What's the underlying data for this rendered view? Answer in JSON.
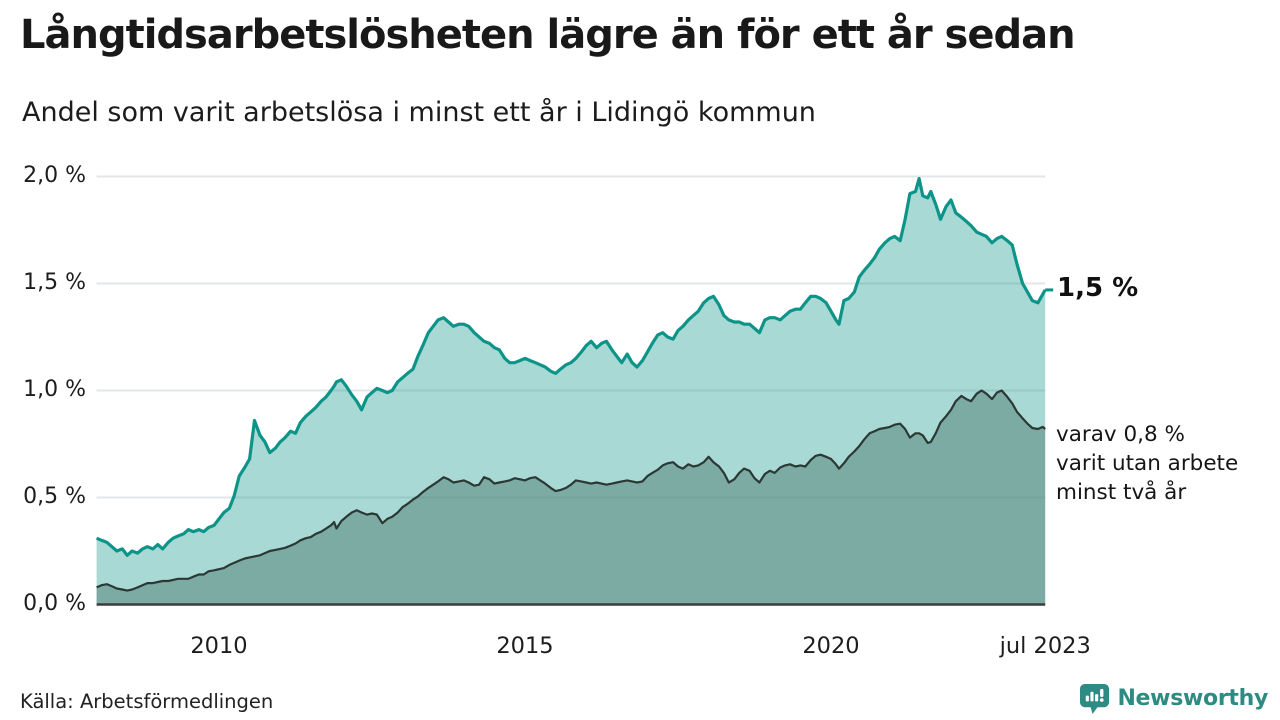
{
  "header": {
    "title": "Långtidsarbetslösheten lägre än för ett år sedan",
    "subtitle": "Andel som varit arbetslösa i minst ett år i Lidingö kommun"
  },
  "footer": {
    "source": "Källa: Arbetsförmedlingen",
    "brand_name": "Newsworthy",
    "brand_icon": "bar-chart-speech-bubble-icon"
  },
  "annotations": {
    "latest_total_label": "1,5 %",
    "two_year_note_lines": [
      "varav 0,8 %",
      "varit utan arbete",
      "minst två år"
    ]
  },
  "colors": {
    "accent_teal": "#0d9488",
    "light_fill": "#a9d6cf",
    "dark_fill": "#7baaa2",
    "dark_line": "#2b3834",
    "gridline": "#e3e6e9",
    "baseline": "#3c3c3c",
    "brand_teal": "#2e8b84"
  },
  "chart_data": {
    "type": "area",
    "title": "Långtidsarbetslösheten lägre än för ett år sedan",
    "subtitle": "Andel som varit arbetslösa i minst ett år i Lidingö kommun",
    "x_unit": "decimal_year",
    "x_range": [
      2008.0,
      2023.5
    ],
    "ylim": [
      0.0,
      2.0
    ],
    "grid": true,
    "y_ticks": [
      {
        "value": 2.0,
        "label": "2,0 %"
      },
      {
        "value": 1.5,
        "label": "1,5 %"
      },
      {
        "value": 1.0,
        "label": "1,0 %"
      },
      {
        "value": 0.5,
        "label": "0,5 %"
      },
      {
        "value": 0.0,
        "label": "0,0 %"
      }
    ],
    "x_ticks": [
      {
        "year": 2010.0,
        "label": "2010"
      },
      {
        "year": 2015.0,
        "label": "2015"
      },
      {
        "year": 2020.0,
        "label": "2020"
      },
      {
        "year": 2023.5,
        "label": "jul 2023"
      }
    ],
    "series_meta": [
      {
        "name": "Andel arbetslösa minst ett år",
        "line_color": "#0d9488",
        "fill_color": "rgba(17,150,139,0.36)",
        "line_width": 3.2,
        "latest_value_pct": 1.5
      },
      {
        "name": "varav utan arbete minst två år",
        "line_color": "#2b3834",
        "fill_color": "rgba(91,137,127,0.58)",
        "line_width": 2.2,
        "latest_value_pct": 0.8
      }
    ],
    "points_format": [
      "decimal_year",
      "pct_unemployed_min_1yr",
      "pct_unemployed_min_2yr"
    ],
    "points": [
      [
        2008.0,
        0.31,
        0.08
      ],
      [
        2008.08,
        0.3,
        0.09
      ],
      [
        2008.17,
        0.29,
        0.095
      ],
      [
        2008.25,
        0.27,
        0.085
      ],
      [
        2008.33,
        0.25,
        0.075
      ],
      [
        2008.42,
        0.26,
        0.07
      ],
      [
        2008.5,
        0.23,
        0.065
      ],
      [
        2008.58,
        0.25,
        0.07
      ],
      [
        2008.67,
        0.24,
        0.08
      ],
      [
        2008.75,
        0.26,
        0.09
      ],
      [
        2008.83,
        0.27,
        0.1
      ],
      [
        2008.92,
        0.26,
        0.1
      ],
      [
        2009.0,
        0.28,
        0.105
      ],
      [
        2009.08,
        0.26,
        0.11
      ],
      [
        2009.17,
        0.29,
        0.11
      ],
      [
        2009.25,
        0.31,
        0.115
      ],
      [
        2009.33,
        0.32,
        0.12
      ],
      [
        2009.42,
        0.33,
        0.12
      ],
      [
        2009.5,
        0.35,
        0.12
      ],
      [
        2009.58,
        0.34,
        0.13
      ],
      [
        2009.67,
        0.35,
        0.14
      ],
      [
        2009.75,
        0.34,
        0.14
      ],
      [
        2009.83,
        0.36,
        0.155
      ],
      [
        2009.92,
        0.37,
        0.16
      ],
      [
        2010.0,
        0.4,
        0.165
      ],
      [
        2010.08,
        0.43,
        0.17
      ],
      [
        2010.17,
        0.45,
        0.185
      ],
      [
        2010.25,
        0.51,
        0.195
      ],
      [
        2010.33,
        0.6,
        0.205
      ],
      [
        2010.42,
        0.64,
        0.215
      ],
      [
        2010.5,
        0.68,
        0.22
      ],
      [
        2010.58,
        0.86,
        0.225
      ],
      [
        2010.67,
        0.79,
        0.23
      ],
      [
        2010.75,
        0.76,
        0.24
      ],
      [
        2010.83,
        0.71,
        0.25
      ],
      [
        2010.92,
        0.73,
        0.255
      ],
      [
        2011.0,
        0.76,
        0.26
      ],
      [
        2011.08,
        0.78,
        0.265
      ],
      [
        2011.17,
        0.81,
        0.275
      ],
      [
        2011.25,
        0.8,
        0.285
      ],
      [
        2011.33,
        0.85,
        0.3
      ],
      [
        2011.42,
        0.88,
        0.31
      ],
      [
        2011.5,
        0.9,
        0.315
      ],
      [
        2011.58,
        0.92,
        0.33
      ],
      [
        2011.67,
        0.95,
        0.34
      ],
      [
        2011.75,
        0.97,
        0.355
      ],
      [
        2011.83,
        1.0,
        0.37
      ],
      [
        2011.88,
        1.02,
        0.385
      ],
      [
        2011.92,
        1.04,
        0.355
      ],
      [
        2012.0,
        1.05,
        0.39
      ],
      [
        2012.08,
        1.02,
        0.41
      ],
      [
        2012.17,
        0.98,
        0.43
      ],
      [
        2012.25,
        0.95,
        0.44
      ],
      [
        2012.33,
        0.91,
        0.43
      ],
      [
        2012.42,
        0.97,
        0.42
      ],
      [
        2012.5,
        0.99,
        0.425
      ],
      [
        2012.58,
        1.01,
        0.42
      ],
      [
        2012.67,
        1.0,
        0.38
      ],
      [
        2012.75,
        0.99,
        0.4
      ],
      [
        2012.83,
        1.0,
        0.41
      ],
      [
        2012.92,
        1.04,
        0.43
      ],
      [
        2013.0,
        1.06,
        0.455
      ],
      [
        2013.08,
        1.08,
        0.47
      ],
      [
        2013.17,
        1.1,
        0.49
      ],
      [
        2013.25,
        1.16,
        0.505
      ],
      [
        2013.33,
        1.21,
        0.525
      ],
      [
        2013.42,
        1.27,
        0.545
      ],
      [
        2013.5,
        1.3,
        0.56
      ],
      [
        2013.58,
        1.33,
        0.575
      ],
      [
        2013.67,
        1.34,
        0.595
      ],
      [
        2013.75,
        1.32,
        0.585
      ],
      [
        2013.83,
        1.3,
        0.57
      ],
      [
        2013.92,
        1.31,
        0.575
      ],
      [
        2014.0,
        1.31,
        0.58
      ],
      [
        2014.08,
        1.3,
        0.57
      ],
      [
        2014.17,
        1.27,
        0.555
      ],
      [
        2014.25,
        1.25,
        0.56
      ],
      [
        2014.33,
        1.23,
        0.595
      ],
      [
        2014.42,
        1.22,
        0.585
      ],
      [
        2014.5,
        1.2,
        0.565
      ],
      [
        2014.58,
        1.19,
        0.57
      ],
      [
        2014.67,
        1.15,
        0.575
      ],
      [
        2014.75,
        1.13,
        0.58
      ],
      [
        2014.83,
        1.13,
        0.59
      ],
      [
        2014.92,
        1.14,
        0.585
      ],
      [
        2015.0,
        1.15,
        0.58
      ],
      [
        2015.08,
        1.14,
        0.59
      ],
      [
        2015.17,
        1.13,
        0.595
      ],
      [
        2015.25,
        1.12,
        0.58
      ],
      [
        2015.33,
        1.11,
        0.565
      ],
      [
        2015.42,
        1.09,
        0.545
      ],
      [
        2015.5,
        1.08,
        0.53
      ],
      [
        2015.58,
        1.1,
        0.535
      ],
      [
        2015.67,
        1.12,
        0.545
      ],
      [
        2015.75,
        1.13,
        0.56
      ],
      [
        2015.83,
        1.15,
        0.58
      ],
      [
        2015.92,
        1.18,
        0.575
      ],
      [
        2016.0,
        1.21,
        0.57
      ],
      [
        2016.08,
        1.23,
        0.565
      ],
      [
        2016.17,
        1.2,
        0.57
      ],
      [
        2016.25,
        1.22,
        0.565
      ],
      [
        2016.33,
        1.23,
        0.56
      ],
      [
        2016.42,
        1.19,
        0.565
      ],
      [
        2016.5,
        1.16,
        0.57
      ],
      [
        2016.58,
        1.13,
        0.575
      ],
      [
        2016.67,
        1.17,
        0.58
      ],
      [
        2016.75,
        1.13,
        0.575
      ],
      [
        2016.83,
        1.11,
        0.57
      ],
      [
        2016.92,
        1.14,
        0.575
      ],
      [
        2017.0,
        1.18,
        0.6
      ],
      [
        2017.08,
        1.22,
        0.615
      ],
      [
        2017.17,
        1.26,
        0.63
      ],
      [
        2017.25,
        1.27,
        0.65
      ],
      [
        2017.33,
        1.25,
        0.66
      ],
      [
        2017.42,
        1.24,
        0.665
      ],
      [
        2017.5,
        1.28,
        0.645
      ],
      [
        2017.58,
        1.3,
        0.635
      ],
      [
        2017.67,
        1.33,
        0.655
      ],
      [
        2017.75,
        1.35,
        0.645
      ],
      [
        2017.83,
        1.37,
        0.65
      ],
      [
        2017.92,
        1.41,
        0.665
      ],
      [
        2018.0,
        1.43,
        0.69
      ],
      [
        2018.08,
        1.44,
        0.665
      ],
      [
        2018.17,
        1.4,
        0.645
      ],
      [
        2018.25,
        1.35,
        0.615
      ],
      [
        2018.33,
        1.33,
        0.57
      ],
      [
        2018.42,
        1.32,
        0.585
      ],
      [
        2018.5,
        1.32,
        0.615
      ],
      [
        2018.58,
        1.31,
        0.635
      ],
      [
        2018.67,
        1.31,
        0.625
      ],
      [
        2018.75,
        1.29,
        0.59
      ],
      [
        2018.83,
        1.27,
        0.57
      ],
      [
        2018.92,
        1.33,
        0.61
      ],
      [
        2019.0,
        1.34,
        0.625
      ],
      [
        2019.08,
        1.34,
        0.615
      ],
      [
        2019.17,
        1.33,
        0.64
      ],
      [
        2019.25,
        1.35,
        0.65
      ],
      [
        2019.33,
        1.37,
        0.655
      ],
      [
        2019.42,
        1.38,
        0.645
      ],
      [
        2019.5,
        1.38,
        0.65
      ],
      [
        2019.58,
        1.41,
        0.645
      ],
      [
        2019.67,
        1.44,
        0.675
      ],
      [
        2019.75,
        1.44,
        0.695
      ],
      [
        2019.83,
        1.43,
        0.7
      ],
      [
        2019.92,
        1.41,
        0.69
      ],
      [
        2020.0,
        1.37,
        0.68
      ],
      [
        2020.08,
        1.33,
        0.655
      ],
      [
        2020.13,
        1.31,
        0.635
      ],
      [
        2020.21,
        1.42,
        0.66
      ],
      [
        2020.29,
        1.43,
        0.69
      ],
      [
        2020.38,
        1.46,
        0.715
      ],
      [
        2020.46,
        1.53,
        0.74
      ],
      [
        2020.54,
        1.56,
        0.77
      ],
      [
        2020.63,
        1.59,
        0.8
      ],
      [
        2020.71,
        1.62,
        0.81
      ],
      [
        2020.79,
        1.66,
        0.82
      ],
      [
        2020.88,
        1.69,
        0.825
      ],
      [
        2020.96,
        1.71,
        0.83
      ],
      [
        2021.04,
        1.72,
        0.84
      ],
      [
        2021.13,
        1.7,
        0.845
      ],
      [
        2021.21,
        1.8,
        0.82
      ],
      [
        2021.29,
        1.92,
        0.78
      ],
      [
        2021.38,
        1.93,
        0.8
      ],
      [
        2021.44,
        1.99,
        0.8
      ],
      [
        2021.5,
        1.91,
        0.79
      ],
      [
        2021.58,
        1.9,
        0.755
      ],
      [
        2021.63,
        1.93,
        0.76
      ],
      [
        2021.71,
        1.87,
        0.8
      ],
      [
        2021.79,
        1.8,
        0.85
      ],
      [
        2021.88,
        1.86,
        0.88
      ],
      [
        2021.96,
        1.89,
        0.91
      ],
      [
        2022.04,
        1.83,
        0.95
      ],
      [
        2022.13,
        1.81,
        0.975
      ],
      [
        2022.21,
        1.79,
        0.96
      ],
      [
        2022.29,
        1.77,
        0.95
      ],
      [
        2022.38,
        1.74,
        0.985
      ],
      [
        2022.46,
        1.73,
        1.0
      ],
      [
        2022.54,
        1.72,
        0.985
      ],
      [
        2022.63,
        1.69,
        0.96
      ],
      [
        2022.71,
        1.71,
        0.99
      ],
      [
        2022.79,
        1.72,
        1.0
      ],
      [
        2022.88,
        1.7,
        0.97
      ],
      [
        2022.96,
        1.68,
        0.94
      ],
      [
        2023.04,
        1.59,
        0.9
      ],
      [
        2023.13,
        1.5,
        0.87
      ],
      [
        2023.21,
        1.46,
        0.845
      ],
      [
        2023.29,
        1.42,
        0.825
      ],
      [
        2023.38,
        1.41,
        0.82
      ],
      [
        2023.46,
        1.45,
        0.83
      ],
      [
        2023.5,
        1.47,
        0.82
      ]
    ]
  }
}
